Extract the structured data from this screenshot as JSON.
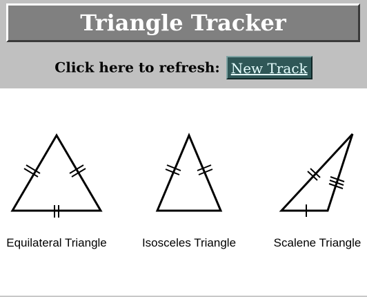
{
  "header": {
    "title": "Triangle Tracker",
    "refresh_label": "Click here to refresh:",
    "new_track_label": "New Track"
  },
  "triangles": [
    {
      "label": "Equilateral Triangle"
    },
    {
      "label": "Isosceles Triangle"
    },
    {
      "label": "Scalene Triangle"
    }
  ],
  "colors": {
    "header_bg": "#c0c0c0",
    "title_bg": "#808080",
    "button_bg": "#2f5757",
    "button_text": "#e6ffff"
  }
}
